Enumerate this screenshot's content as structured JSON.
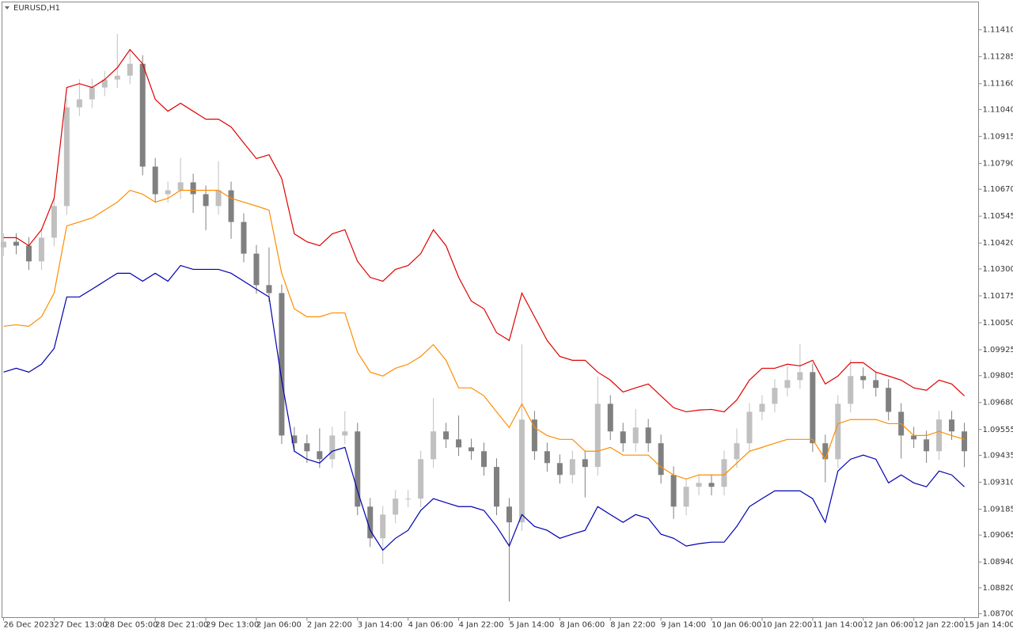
{
  "chart_data": {
    "type": "candlestick",
    "title": "EURUSD,H1",
    "up_color": "#c0c0c0",
    "down_color": "#808080",
    "x": [
      0,
      4,
      8,
      12,
      16,
      20,
      24,
      28,
      32,
      36,
      40,
      44,
      48,
      52,
      56,
      60,
      64,
      68,
      72,
      76,
      80,
      84,
      88,
      92,
      96,
      100,
      104,
      108,
      112,
      116,
      120,
      124,
      128,
      132,
      136,
      140,
      144,
      148,
      152,
      156,
      160,
      164,
      168,
      172,
      176,
      180,
      184,
      188,
      192,
      196,
      200,
      204,
      208,
      212,
      216,
      220,
      224,
      228,
      232,
      236,
      240,
      244,
      248,
      252,
      256,
      260,
      264,
      268,
      272,
      276,
      280,
      284,
      288,
      292,
      296,
      300,
      304
    ],
    "open": [
      1.104,
      1.10426,
      1.10408,
      1.10335,
      1.10445,
      1.10592,
      1.1105,
      1.11087,
      1.11142,
      1.11179,
      1.11197,
      1.11252,
      1.10775,
      1.10647,
      1.10665,
      1.10702,
      1.10647,
      1.10592,
      1.10665,
      1.10518,
      1.10371,
      1.10225,
      1.10188,
      1.09527,
      1.09491,
      1.09454,
      1.09417,
      1.09527,
      1.09546,
      1.09197,
      1.0905,
      1.0916,
      1.09234,
      1.09234,
      1.09417,
      1.09546,
      1.09509,
      1.09472,
      1.09454,
      1.09381,
      1.09197,
      1.09124,
      1.09601,
      1.09454,
      1.09399,
      1.09344,
      1.09417,
      1.09381,
      1.09674,
      1.09546,
      1.09491,
      1.09564,
      1.09491,
      1.09344,
      1.09197,
      1.09289,
      1.09307,
      1.09289,
      1.09417,
      1.09491,
      1.09637,
      1.09674,
      1.09748,
      1.09784,
      1.09821,
      1.09491,
      1.09417,
      1.09674,
      1.09803,
      1.09784,
      1.09748,
      1.09637,
      1.09527,
      1.09509,
      1.09454,
      1.09601,
      1.09546
    ],
    "high": [
      1.10466,
      1.10466,
      1.10448,
      1.10485,
      1.10632,
      1.1109,
      1.1118,
      1.11182,
      1.11219,
      1.1139,
      1.1132,
      1.11292,
      1.10815,
      1.10705,
      1.10815,
      1.10742,
      1.10687,
      1.108,
      1.10705,
      1.10558,
      1.10411,
      1.104,
      1.10228,
      1.09567,
      1.09531,
      1.0956,
      1.09567,
      1.0964,
      1.09586,
      1.09237,
      1.092,
      1.09274,
      1.09274,
      1.09457,
      1.097,
      1.09586,
      1.0962,
      1.09512,
      1.09494,
      1.09421,
      1.09237,
      1.0995,
      1.09641,
      1.09494,
      1.09439,
      1.09457,
      1.09457,
      1.098,
      1.09714,
      1.09586,
      1.0965,
      1.09604,
      1.09531,
      1.09384,
      1.09329,
      1.09347,
      1.09347,
      1.09457,
      1.0956,
      1.09677,
      1.09714,
      1.09788,
      1.0985,
      1.0995,
      1.09861,
      1.09531,
      1.09714,
      1.0988,
      1.09843,
      1.09824,
      1.09788,
      1.09677,
      1.09567,
      1.09549,
      1.09641,
      1.09641,
      1.09586
    ],
    "low": [
      1.1036,
      1.10368,
      1.10295,
      1.10295,
      1.10405,
      1.10552,
      1.1101,
      1.11047,
      1.11102,
      1.11139,
      1.11157,
      1.10735,
      1.10607,
      1.10607,
      1.10625,
      1.1056,
      1.1048,
      1.10552,
      1.1044,
      1.10331,
      1.10185,
      1.10148,
      1.09487,
      1.09451,
      1.094,
      1.09377,
      1.09377,
      1.09487,
      1.09157,
      1.0901,
      1.0893,
      1.0912,
      1.09194,
      1.09194,
      1.09377,
      1.09469,
      1.09432,
      1.09414,
      1.09341,
      1.09157,
      1.08757,
      1.09084,
      1.09414,
      1.09359,
      1.09304,
      1.09304,
      1.0924,
      1.09341,
      1.09506,
      1.09451,
      1.09451,
      1.09451,
      1.09304,
      1.0914,
      1.09157,
      1.09249,
      1.09249,
      1.09249,
      1.09377,
      1.09451,
      1.09597,
      1.09634,
      1.09708,
      1.09744,
      1.09451,
      1.0931,
      1.09377,
      1.09634,
      1.09744,
      1.09708,
      1.09597,
      1.0942,
      1.09469,
      1.094,
      1.09414,
      1.09506,
      1.0938
    ],
    "close": [
      1.10426,
      1.10408,
      1.10335,
      1.10445,
      1.10592,
      1.1105,
      1.11087,
      1.11142,
      1.11179,
      1.11197,
      1.11252,
      1.10775,
      1.10647,
      1.10665,
      1.10702,
      1.10647,
      1.10592,
      1.10665,
      1.10518,
      1.10371,
      1.10225,
      1.10188,
      1.09527,
      1.09491,
      1.09454,
      1.09417,
      1.09527,
      1.09546,
      1.09197,
      1.0905,
      1.0916,
      1.09234,
      1.09234,
      1.09417,
      1.09546,
      1.09509,
      1.09472,
      1.09454,
      1.09381,
      1.09197,
      1.09124,
      1.09601,
      1.09454,
      1.09399,
      1.09344,
      1.09417,
      1.09381,
      1.09674,
      1.09546,
      1.09491,
      1.09564,
      1.09491,
      1.09344,
      1.09197,
      1.09289,
      1.09307,
      1.09289,
      1.09417,
      1.09491,
      1.09637,
      1.09674,
      1.09748,
      1.09784,
      1.09821,
      1.09491,
      1.09417,
      1.09674,
      1.09803,
      1.09784,
      1.09748,
      1.09637,
      1.09527,
      1.09509,
      1.09454,
      1.09601,
      1.09546,
      1.09454
    ],
    "series": [
      {
        "color": "#e00000",
        "values": [
          1.10445,
          1.10445,
          1.10408,
          1.10482,
          1.10628,
          1.11142,
          1.1116,
          1.11142,
          1.11179,
          1.11234,
          1.11318,
          1.11252,
          1.11087,
          1.11032,
          1.11069,
          1.11032,
          1.10995,
          1.10995,
          1.10959,
          1.10885,
          1.10812,
          1.1083,
          1.1072,
          1.10463,
          1.10426,
          1.10408,
          1.10463,
          1.10482,
          1.10335,
          1.10261,
          1.10243,
          1.10298,
          1.10316,
          1.10371,
          1.10482,
          1.10408,
          1.10261,
          1.10151,
          1.10115,
          1.10004,
          1.09968,
          1.10188,
          1.10078,
          1.09968,
          1.09894,
          1.09876,
          1.09876,
          1.09821,
          1.09784,
          1.09729,
          1.09748,
          1.09766,
          1.09711,
          1.09656,
          1.09637,
          1.09645,
          1.09648,
          1.09637,
          1.09692,
          1.09784,
          1.09839,
          1.09839,
          1.09858,
          1.0985,
          1.09876,
          1.09766,
          1.09803,
          1.09865,
          1.09865,
          1.09821,
          1.09803,
          1.09784,
          1.09748,
          1.09737,
          1.09784,
          1.09766,
          1.09711
        ]
      },
      {
        "color": "#ff8c00",
        "values": [
          1.10034,
          1.10041,
          1.10034,
          1.10078,
          1.10188,
          1.105,
          1.10518,
          1.10537,
          1.10573,
          1.1061,
          1.10665,
          1.10647,
          1.1061,
          1.10628,
          1.10665,
          1.10665,
          1.10665,
          1.10665,
          1.10628,
          1.1061,
          1.10592,
          1.10573,
          1.1028,
          1.10115,
          1.10078,
          1.10078,
          1.10096,
          1.10096,
          1.09913,
          1.09821,
          1.09803,
          1.09839,
          1.09858,
          1.09894,
          1.09949,
          1.09876,
          1.09748,
          1.09748,
          1.09711,
          1.09637,
          1.09564,
          1.09674,
          1.09564,
          1.09527,
          1.09509,
          1.09509,
          1.09454,
          1.09454,
          1.09472,
          1.09436,
          1.09436,
          1.09436,
          1.09381,
          1.09344,
          1.09325,
          1.09344,
          1.09344,
          1.09344,
          1.09399,
          1.09454,
          1.09472,
          1.09491,
          1.09509,
          1.09509,
          1.09509,
          1.09417,
          1.09582,
          1.09601,
          1.09601,
          1.09601,
          1.09582,
          1.09582,
          1.09527,
          1.09527,
          1.09546,
          1.09527,
          1.09509
        ]
      },
      {
        "color": "#0000b0",
        "values": [
          1.09821,
          1.09839,
          1.09821,
          1.09858,
          1.09931,
          1.1017,
          1.1017,
          1.10206,
          1.10243,
          1.1028,
          1.1028,
          1.10243,
          1.1028,
          1.10243,
          1.10316,
          1.10298,
          1.10298,
          1.10298,
          1.1028,
          1.10243,
          1.10206,
          1.1017,
          1.09784,
          1.09454,
          1.09417,
          1.09399,
          1.09454,
          1.09472,
          1.0927,
          1.09087,
          1.08995,
          1.0905,
          1.09087,
          1.09179,
          1.09234,
          1.09215,
          1.09197,
          1.09197,
          1.09179,
          1.09105,
          1.09014,
          1.0916,
          1.09105,
          1.09087,
          1.0905,
          1.09069,
          1.09087,
          1.09197,
          1.0916,
          1.09124,
          1.0916,
          1.09142,
          1.09069,
          1.0905,
          1.09014,
          1.09025,
          1.09032,
          1.09032,
          1.09105,
          1.09197,
          1.09234,
          1.0927,
          1.0927,
          1.0927,
          1.09234,
          1.09124,
          1.09362,
          1.09417,
          1.09436,
          1.09417,
          1.09307,
          1.09344,
          1.09307,
          1.09289,
          1.09362,
          1.09344,
          1.09289
        ]
      }
    ],
    "xlim": [
      -0.5,
      308.5
    ],
    "xticks": [
      {
        "value": 0,
        "label": "26 Dec 2023"
      },
      {
        "value": 16,
        "label": "27 Dec 13:00"
      },
      {
        "value": 32,
        "label": "28 Dec 05:00"
      },
      {
        "value": 48,
        "label": "28 Dec 21:00"
      },
      {
        "value": 64,
        "label": "29 Dec 13:00"
      },
      {
        "value": 80,
        "label": "2 Jan 06:00"
      },
      {
        "value": 96,
        "label": "2 Jan 22:00"
      },
      {
        "value": 112,
        "label": "3 Jan 14:00"
      },
      {
        "value": 128,
        "label": "4 Jan 06:00"
      },
      {
        "value": 144,
        "label": "4 Jan 22:00"
      },
      {
        "value": 160,
        "label": "5 Jan 14:00"
      },
      {
        "value": 176,
        "label": "8 Jan 06:00"
      },
      {
        "value": 192,
        "label": "8 Jan 22:00"
      },
      {
        "value": 208,
        "label": "9 Jan 14:00"
      },
      {
        "value": 224,
        "label": "10 Jan 06:00"
      },
      {
        "value": 240,
        "label": "10 Jan 22:00"
      },
      {
        "value": 256,
        "label": "11 Jan 14:00"
      },
      {
        "value": 272,
        "label": "12 Jan 06:00"
      },
      {
        "value": 288,
        "label": "12 Jan 22:00"
      },
      {
        "value": 304,
        "label": "15 Jan 14:00"
      }
    ],
    "ylim": [
      1.08682,
      1.11539
    ],
    "yticks": [
      {
        "value": 1.1141,
        "label": "1.11410"
      },
      1.11285,
      {
        "value": 1.1116,
        "label": "1.11160"
      },
      {
        "value": 1.1104,
        "label": "1.11040"
      },
      1.10915,
      {
        "value": 1.1079,
        "label": "1.10790"
      },
      {
        "value": 1.1067,
        "label": "1.10670"
      },
      1.10545,
      {
        "value": 1.1042,
        "label": "1.10420"
      },
      {
        "value": 1.103,
        "label": "1.10300"
      },
      1.10175,
      {
        "value": 1.1005,
        "label": "1.10050"
      },
      1.09925,
      1.09805,
      {
        "value": 1.0968,
        "label": "1.09680"
      },
      1.09555,
      1.09435,
      {
        "value": 1.0931,
        "label": "1.09310"
      },
      1.09185,
      1.09065,
      {
        "value": 1.0894,
        "label": "1.08940"
      },
      {
        "value": 1.0882,
        "label": "1.08820"
      },
      {
        "value": 1.087,
        "label": "1.08700"
      }
    ]
  }
}
